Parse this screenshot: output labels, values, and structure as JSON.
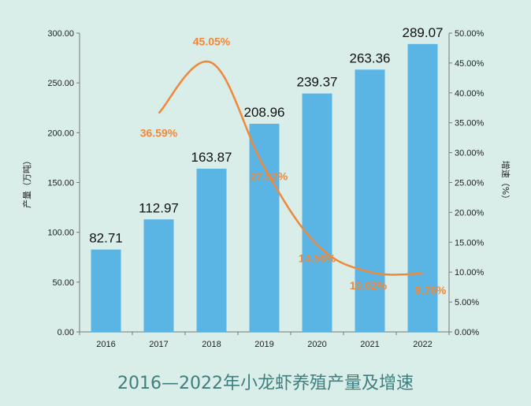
{
  "chart_data": {
    "type": "bar",
    "title": "2016—2022年小龙虾养殖产量及增速",
    "ylabel": "产量（万吨）",
    "y2label": "增速（%）",
    "categories": [
      "2016",
      "2017",
      "2018",
      "2019",
      "2020",
      "2021",
      "2022"
    ],
    "ylim": [
      0,
      300
    ],
    "y2lim": [
      0,
      50
    ],
    "yticks": [
      "0.00",
      "50.00",
      "100.00",
      "150.00",
      "200.00",
      "250.00",
      "300.00"
    ],
    "y2ticks": [
      "0.00%",
      "5.00%",
      "10.00%",
      "15.00%",
      "20.00%",
      "25.00%",
      "30.00%",
      "35.00%",
      "40.00%",
      "45.00%",
      "50.00%"
    ],
    "series": [
      {
        "values": [
          82.71,
          112.97,
          163.87,
          208.96,
          239.37,
          263.36,
          289.07
        ],
        "labels": [
          "82.71",
          "112.97",
          "163.87",
          "208.96",
          "239.37",
          "263.36",
          "289.07"
        ],
        "color": "#5ab5e5",
        "kind": "bar"
      },
      {
        "values": [
          null,
          36.59,
          45.05,
          27.52,
          14.56,
          10.02,
          9.76
        ],
        "labels": [
          "",
          "36.59%",
          "45.05%",
          "27.52%",
          "14.56%",
          "10.02%",
          "9.76%"
        ],
        "color": "#f0883a",
        "kind": "line",
        "axis": "right"
      }
    ],
    "grid": false,
    "legend": "none"
  }
}
